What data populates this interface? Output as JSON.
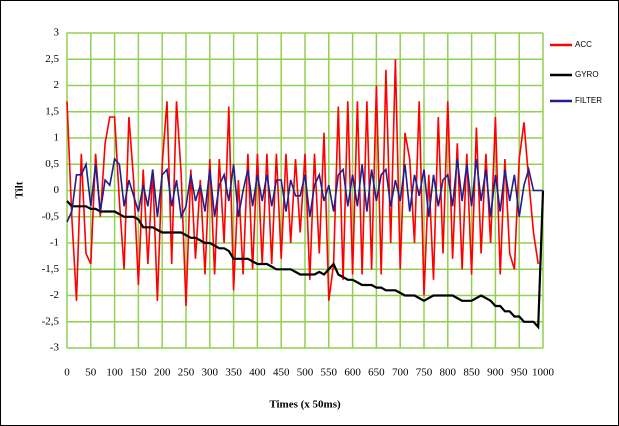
{
  "chart_data": {
    "type": "line",
    "xlabel": "Times (x 50ms)",
    "ylabel": "Tilt",
    "x": [
      0,
      10,
      20,
      30,
      40,
      50,
      60,
      70,
      80,
      90,
      100,
      110,
      120,
      130,
      140,
      150,
      160,
      170,
      180,
      190,
      200,
      210,
      220,
      230,
      240,
      250,
      260,
      270,
      280,
      290,
      300,
      310,
      320,
      330,
      340,
      350,
      360,
      370,
      380,
      390,
      400,
      410,
      420,
      430,
      440,
      450,
      460,
      470,
      480,
      490,
      500,
      510,
      520,
      530,
      540,
      550,
      560,
      570,
      580,
      590,
      600,
      610,
      620,
      630,
      640,
      650,
      660,
      670,
      680,
      690,
      700,
      710,
      720,
      730,
      740,
      750,
      760,
      770,
      780,
      790,
      800,
      810,
      820,
      830,
      840,
      850,
      860,
      870,
      880,
      890,
      900,
      910,
      920,
      930,
      940,
      950,
      960,
      970,
      980,
      990,
      1000
    ],
    "series": [
      {
        "name": "ACC",
        "color": "#ff0000",
        "values": [
          1.7,
          -0.5,
          -2.1,
          0.7,
          -1.2,
          -1.4,
          0.7,
          -0.5,
          0.9,
          1.4,
          1.4,
          -0.2,
          -1.5,
          1.4,
          0.2,
          -1.8,
          0.4,
          -1.4,
          0.4,
          -2.1,
          0.5,
          1.7,
          -1.4,
          1.7,
          0.3,
          -2.2,
          0.4,
          -1.3,
          0.2,
          -1.6,
          0.6,
          -1.6,
          0.6,
          -1.0,
          1.6,
          -1.9,
          0.2,
          -1.6,
          0.7,
          -1.5,
          0.7,
          -1.4,
          0.7,
          -1.4,
          0.7,
          -1.3,
          0.7,
          -1.0,
          0.6,
          -0.8,
          0.7,
          -1.7,
          0.7,
          -1.2,
          1.1,
          -2.1,
          -1.4,
          1.6,
          -1.7,
          1.7,
          -1.6,
          1.7,
          -1.6,
          1.7,
          -1.5,
          2.0,
          -1.6,
          2.3,
          -1.0,
          2.5,
          -1.5,
          1.1,
          0.6,
          -1.0,
          1.7,
          -2.0,
          0.3,
          -1.7,
          1.4,
          -1.2,
          1.7,
          -1.3,
          0.9,
          -1.5,
          0.7,
          -1.6,
          1.2,
          -1.2,
          0.7,
          -1.0,
          1.4,
          -1.6,
          0.6,
          -1.2,
          -1.5,
          0.6,
          1.3,
          0.2,
          -0.8,
          -1.4,
          null
        ]
      },
      {
        "name": "GYRO",
        "color": "#000000",
        "values": [
          -0.2,
          -0.3,
          -0.3,
          -0.3,
          -0.3,
          -0.35,
          -0.35,
          -0.4,
          -0.4,
          -0.4,
          -0.4,
          -0.45,
          -0.5,
          -0.5,
          -0.5,
          -0.55,
          -0.7,
          -0.7,
          -0.7,
          -0.75,
          -0.8,
          -0.8,
          -0.8,
          -0.8,
          -0.8,
          -0.85,
          -0.9,
          -0.9,
          -0.95,
          -1.0,
          -1.0,
          -1.05,
          -1.1,
          -1.1,
          -1.15,
          -1.3,
          -1.3,
          -1.3,
          -1.3,
          -1.35,
          -1.4,
          -1.4,
          -1.4,
          -1.45,
          -1.5,
          -1.5,
          -1.5,
          -1.5,
          -1.55,
          -1.6,
          -1.6,
          -1.6,
          -1.6,
          -1.55,
          -1.6,
          -1.5,
          -1.4,
          -1.6,
          -1.65,
          -1.7,
          -1.7,
          -1.75,
          -1.8,
          -1.8,
          -1.8,
          -1.85,
          -1.85,
          -1.9,
          -1.9,
          -1.9,
          -1.95,
          -2.0,
          -2.0,
          -2.0,
          -2.05,
          -2.1,
          -2.05,
          -2.0,
          -2.0,
          -2.0,
          -2.0,
          -2.0,
          -2.05,
          -2.1,
          -2.1,
          -2.1,
          -2.05,
          -2.0,
          -2.05,
          -2.1,
          -2.2,
          -2.2,
          -2.3,
          -2.3,
          -2.4,
          -2.4,
          -2.5,
          -2.5,
          -2.5,
          -2.6,
          0
        ]
      },
      {
        "name": "FILTER",
        "color": "#1f1f8f",
        "values": [
          -0.6,
          -0.4,
          0.3,
          0.3,
          0.5,
          -0.3,
          0.5,
          -0.4,
          0.2,
          0.1,
          0.6,
          0.5,
          -0.3,
          0.2,
          -0.1,
          -0.4,
          0.1,
          -0.3,
          0.4,
          -0.5,
          0.3,
          0.4,
          -0.3,
          0.2,
          -0.5,
          -0.3,
          0.3,
          -0.2,
          0.1,
          -0.4,
          0.4,
          -0.5,
          0.1,
          0.3,
          -0.2,
          0.5,
          -0.5,
          0.0,
          0.4,
          -0.3,
          0.3,
          -0.2,
          0.3,
          -0.3,
          0.2,
          0.2,
          -0.4,
          0.2,
          -0.1,
          -0.1,
          0.3,
          -0.5,
          0.1,
          0.3,
          -0.2,
          0.1,
          -0.4,
          0.3,
          0.4,
          -0.3,
          0.3,
          -0.3,
          0.5,
          -0.4,
          0.4,
          -0.2,
          0.3,
          0.4,
          -0.3,
          0.2,
          -0.2,
          0.5,
          -0.4,
          0.3,
          -0.1,
          0.4,
          -0.5,
          0.3,
          -0.3,
          0.2,
          0.3,
          -0.3,
          0.6,
          -0.2,
          0.5,
          -0.3,
          0.6,
          -0.2,
          0.4,
          -0.5,
          0.3,
          -0.4,
          0.4,
          -0.2,
          0.3,
          -0.5,
          0.1,
          0.4,
          0.0,
          0.0,
          0
        ]
      }
    ],
    "xlim": [
      0,
      1000
    ],
    "xticks": [
      0,
      50,
      100,
      150,
      200,
      250,
      300,
      350,
      400,
      450,
      500,
      550,
      600,
      650,
      700,
      750,
      800,
      850,
      900,
      950,
      1000
    ],
    "ylim": [
      -3,
      3
    ],
    "yticks": [
      -3,
      {
        "value": -2.5,
        "label": "-2,5"
      },
      -2,
      {
        "value": -1.5,
        "label": "-1,5"
      },
      -1,
      {
        "value": -0.5,
        "label": "-0,5"
      },
      0,
      {
        "value": 0.5,
        "label": "0,5"
      },
      1,
      {
        "value": 1.5,
        "label": "1,5"
      },
      2,
      {
        "value": 2.5,
        "label": "2,5"
      },
      3
    ],
    "grid": true,
    "grid_color": "#92d050",
    "legend": "right"
  }
}
